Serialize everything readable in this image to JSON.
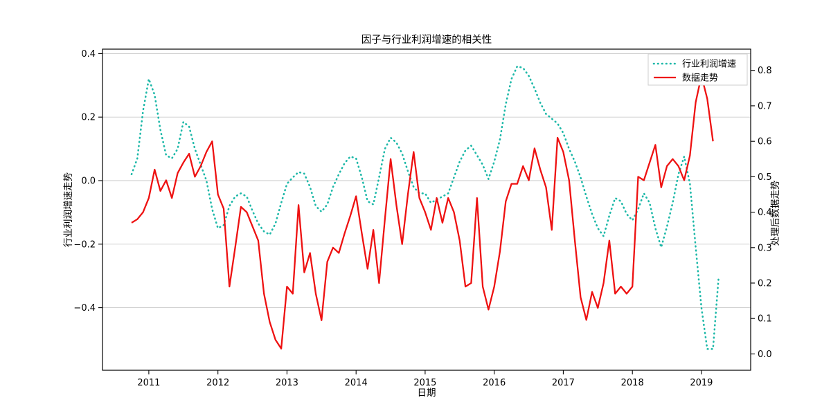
{
  "title": "因子与行业利润增速的相关性",
  "axes": {
    "x": {
      "label": "日期",
      "tick_labels": [
        "2011",
        "2012",
        "2013",
        "2014",
        "2015",
        "2016",
        "2017",
        "2018",
        "2019"
      ]
    },
    "y_left": {
      "label": "行业利润增速走势",
      "tick_labels": [
        "0.4",
        "0.2",
        "0.0",
        "−0.2",
        "−0.4"
      ],
      "tick_values": [
        0.4,
        0.2,
        0.0,
        -0.2,
        -0.4
      ]
    },
    "y_right": {
      "label": "处理后数据走势",
      "tick_labels": [
        "0.0",
        "0.1",
        "0.2",
        "0.3",
        "0.4",
        "0.5",
        "0.6",
        "0.7",
        "0.8"
      ],
      "tick_values": [
        0.0,
        0.1,
        0.2,
        0.3,
        0.4,
        0.5,
        0.6,
        0.7,
        0.8
      ]
    }
  },
  "legend": {
    "items": [
      {
        "label": "行业利润增速",
        "style": "dotted",
        "color": "#1db8a8"
      },
      {
        "label": "数据走势",
        "style": "solid",
        "color": "#ee1111"
      }
    ]
  },
  "colors": {
    "industry_line": "#1db8a8",
    "processed_line": "#ee1111",
    "gridline": "#c9c9c9",
    "spine": "#000000"
  },
  "chart_data": {
    "type": "line",
    "title": "因子与行业利润增速的相关性",
    "xlabel": "日期",
    "ylabel_left": "行业利润增速走势",
    "ylabel_right": "处理后数据走势",
    "x_start_month": "2010-10",
    "x_freq": "monthly",
    "x_year_ticks": [
      2011,
      2012,
      2013,
      2014,
      2015,
      2016,
      2017,
      2018,
      2019
    ],
    "ylim_left": [
      -0.597,
      0.414
    ],
    "ylim_right": [
      -0.046,
      0.86
    ],
    "grid": "horizontal",
    "legend_position": "upper right",
    "series": [
      {
        "name": "行业利润增速",
        "axis": "left",
        "color": "#1db8a8",
        "linestyle": "dotted",
        "values": [
          0.02,
          0.07,
          0.22,
          0.32,
          0.27,
          0.16,
          0.08,
          0.07,
          0.1,
          0.185,
          0.17,
          0.1,
          0.05,
          0.0,
          -0.09,
          -0.15,
          -0.14,
          -0.08,
          -0.05,
          -0.04,
          -0.05,
          -0.095,
          -0.135,
          -0.16,
          -0.17,
          -0.135,
          -0.07,
          -0.01,
          0.01,
          0.027,
          0.022,
          -0.02,
          -0.08,
          -0.098,
          -0.075,
          -0.02,
          0.02,
          0.055,
          0.076,
          0.07,
          0.01,
          -0.065,
          -0.075,
          0.01,
          0.1,
          0.135,
          0.12,
          0.085,
          0.03,
          -0.02,
          -0.04,
          -0.04,
          -0.07,
          -0.06,
          -0.05,
          -0.04,
          0.01,
          0.06,
          0.095,
          0.11,
          0.08,
          0.05,
          0.005,
          0.06,
          0.13,
          0.24,
          0.32,
          0.36,
          0.355,
          0.33,
          0.29,
          0.245,
          0.21,
          0.195,
          0.18,
          0.15,
          0.1,
          0.06,
          0.01,
          -0.05,
          -0.105,
          -0.15,
          -0.175,
          -0.11,
          -0.055,
          -0.065,
          -0.105,
          -0.125,
          -0.09,
          -0.04,
          -0.07,
          -0.15,
          -0.21,
          -0.145,
          -0.07,
          0.02,
          0.076,
          -0.01,
          -0.21,
          -0.4,
          -0.53,
          -0.53,
          -0.3
        ]
      },
      {
        "name": "数据走势",
        "axis": "right",
        "color": "#ee1111",
        "linestyle": "solid",
        "values": [
          0.37,
          0.38,
          0.4,
          0.44,
          0.52,
          0.46,
          0.49,
          0.44,
          0.51,
          0.54,
          0.565,
          0.5,
          0.53,
          0.57,
          0.6,
          0.45,
          0.41,
          0.19,
          0.3,
          0.415,
          0.4,
          0.36,
          0.32,
          0.17,
          0.09,
          0.04,
          0.015,
          0.19,
          0.17,
          0.42,
          0.23,
          0.285,
          0.17,
          0.095,
          0.26,
          0.3,
          0.285,
          0.34,
          0.39,
          0.445,
          0.34,
          0.24,
          0.35,
          0.2,
          0.38,
          0.55,
          0.42,
          0.31,
          0.45,
          0.57,
          0.44,
          0.4,
          0.35,
          0.44,
          0.37,
          0.44,
          0.4,
          0.32,
          0.19,
          0.2,
          0.44,
          0.19,
          0.125,
          0.19,
          0.29,
          0.43,
          0.48,
          0.48,
          0.53,
          0.49,
          0.58,
          0.52,
          0.47,
          0.35,
          0.61,
          0.57,
          0.49,
          0.32,
          0.16,
          0.096,
          0.175,
          0.13,
          0.2,
          0.32,
          0.17,
          0.19,
          0.17,
          0.19,
          0.5,
          0.49,
          0.54,
          0.59,
          0.47,
          0.53,
          0.55,
          0.53,
          0.49,
          0.56,
          0.71,
          0.785,
          0.72,
          0.6
        ]
      }
    ]
  }
}
